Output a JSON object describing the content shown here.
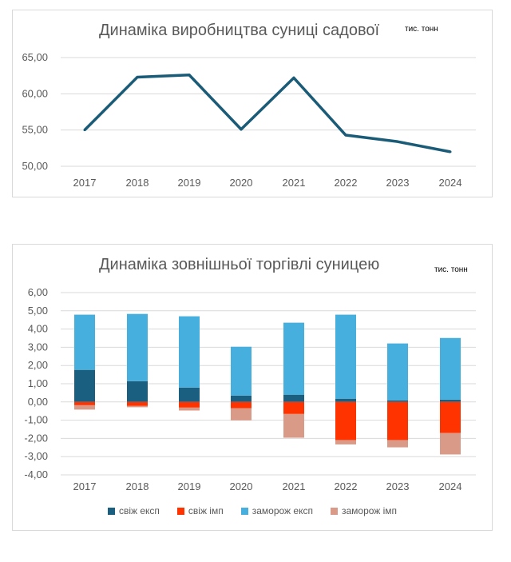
{
  "chart_data": [
    {
      "type": "line",
      "title": "Динаміка виробництва суниці садової",
      "unit": "тис. тонн",
      "categories": [
        "2017",
        "2018",
        "2019",
        "2020",
        "2021",
        "2022",
        "2023",
        "2024"
      ],
      "values": [
        55.0,
        62.3,
        62.6,
        55.1,
        62.2,
        54.3,
        53.4,
        52.0
      ],
      "yticks": [
        "50,00",
        "55,00",
        "60,00",
        "65,00"
      ],
      "ylim": [
        50,
        65
      ],
      "grid": true,
      "color": "#1a5b78"
    },
    {
      "type": "bar",
      "stacked": true,
      "title": "Динаміка зовнішньої торгівлі суницею",
      "unit": "тис. тонн",
      "categories": [
        "2017",
        "2018",
        "2019",
        "2020",
        "2021",
        "2022",
        "2023",
        "2024"
      ],
      "yticks": [
        "-4,00",
        "-3,00",
        "-2,00",
        "-1,00",
        "0,00",
        "1,00",
        "2,00",
        "3,00",
        "4,00",
        "5,00",
        "6,00"
      ],
      "ylim": [
        -4,
        6
      ],
      "legend_position": "bottom",
      "series": [
        {
          "name": "свіж експ",
          "color": "#1a5f80",
          "values": [
            1.76,
            1.14,
            0.79,
            0.35,
            0.4,
            0.18,
            0.09,
            0.13
          ]
        },
        {
          "name": "свіж імп",
          "color": "#ff3300",
          "values": [
            -0.18,
            -0.22,
            -0.31,
            -0.35,
            -0.66,
            -2.09,
            -2.09,
            -1.7
          ]
        },
        {
          "name": "заморож експ",
          "color": "#47afdd",
          "values": [
            3.03,
            3.69,
            3.91,
            2.68,
            3.95,
            4.61,
            3.12,
            3.38
          ]
        },
        {
          "name": "заморож імп",
          "color": "#d99a88",
          "values": [
            -0.24,
            -0.07,
            -0.16,
            -0.66,
            -1.3,
            -0.24,
            -0.4,
            -1.18
          ]
        }
      ]
    }
  ]
}
